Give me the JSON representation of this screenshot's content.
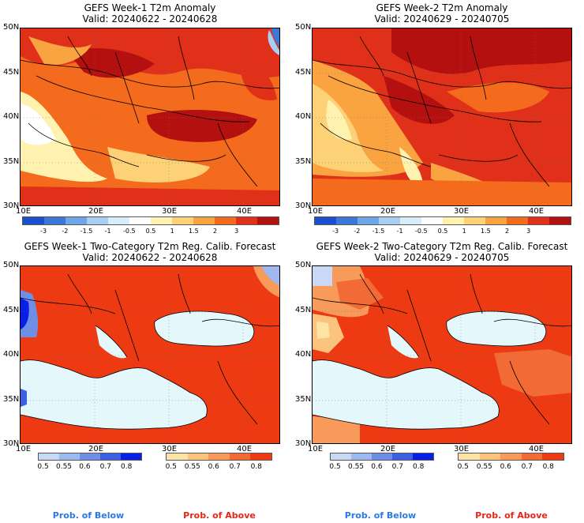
{
  "panels": [
    {
      "title": "GEFS Week-1 T2m Anomaly",
      "valid": "Valid: 20240622 - 20240628"
    },
    {
      "title": "GEFS Week-2 T2m Anomaly",
      "valid": "Valid: 20240629 - 20240705"
    },
    {
      "title": "GEFS Week-1 Two-Category T2m Reg. Calib. Forecast",
      "valid": "Valid: 20240622 - 20240628"
    },
    {
      "title": "GEFS Week-2 Two-Category T2m Reg. Calib. Forecast",
      "valid": "Valid: 20240629 - 20240705"
    }
  ],
  "lat_ticks": [
    "50N",
    "45N",
    "40N",
    "35N",
    "30N"
  ],
  "lon_ticks": [
    "10E",
    "20E",
    "30E",
    "40E"
  ],
  "anomaly_scale": {
    "labels": [
      "-3",
      "-2",
      "-1.5",
      "-1",
      "-0.5",
      "0.5",
      "1",
      "1.5",
      "2",
      "3"
    ],
    "colors": [
      "#1a4fcf",
      "#3b78d8",
      "#6fa6e8",
      "#a8cef2",
      "#d9ecfa",
      "#ffffff",
      "#fff2b0",
      "#fdd176",
      "#f9a441",
      "#f46b1d",
      "#e0301a",
      "#b3100f"
    ]
  },
  "below_scale": {
    "labels": [
      "0.5",
      "0.55",
      "0.6",
      "0.7",
      "0.8"
    ],
    "colors": [
      "#c9d9f5",
      "#9fb8ef",
      "#6f8fe6",
      "#3d5fe0",
      "#0a1ee6"
    ]
  },
  "above_scale": {
    "labels": [
      "0.5",
      "0.55",
      "0.6",
      "0.7",
      "0.8"
    ],
    "colors": [
      "#fde3a6",
      "#fbc37e",
      "#f79a5a",
      "#f26a35",
      "#ee3a13"
    ]
  },
  "prob_below": "Prob. of Below",
  "prob_above": "Prob. of Above",
  "colors": {
    "below_text": "#2a7ae2",
    "above_text": "#e3281a",
    "sea_light": "#e4f8fb",
    "frame": "#000000"
  }
}
